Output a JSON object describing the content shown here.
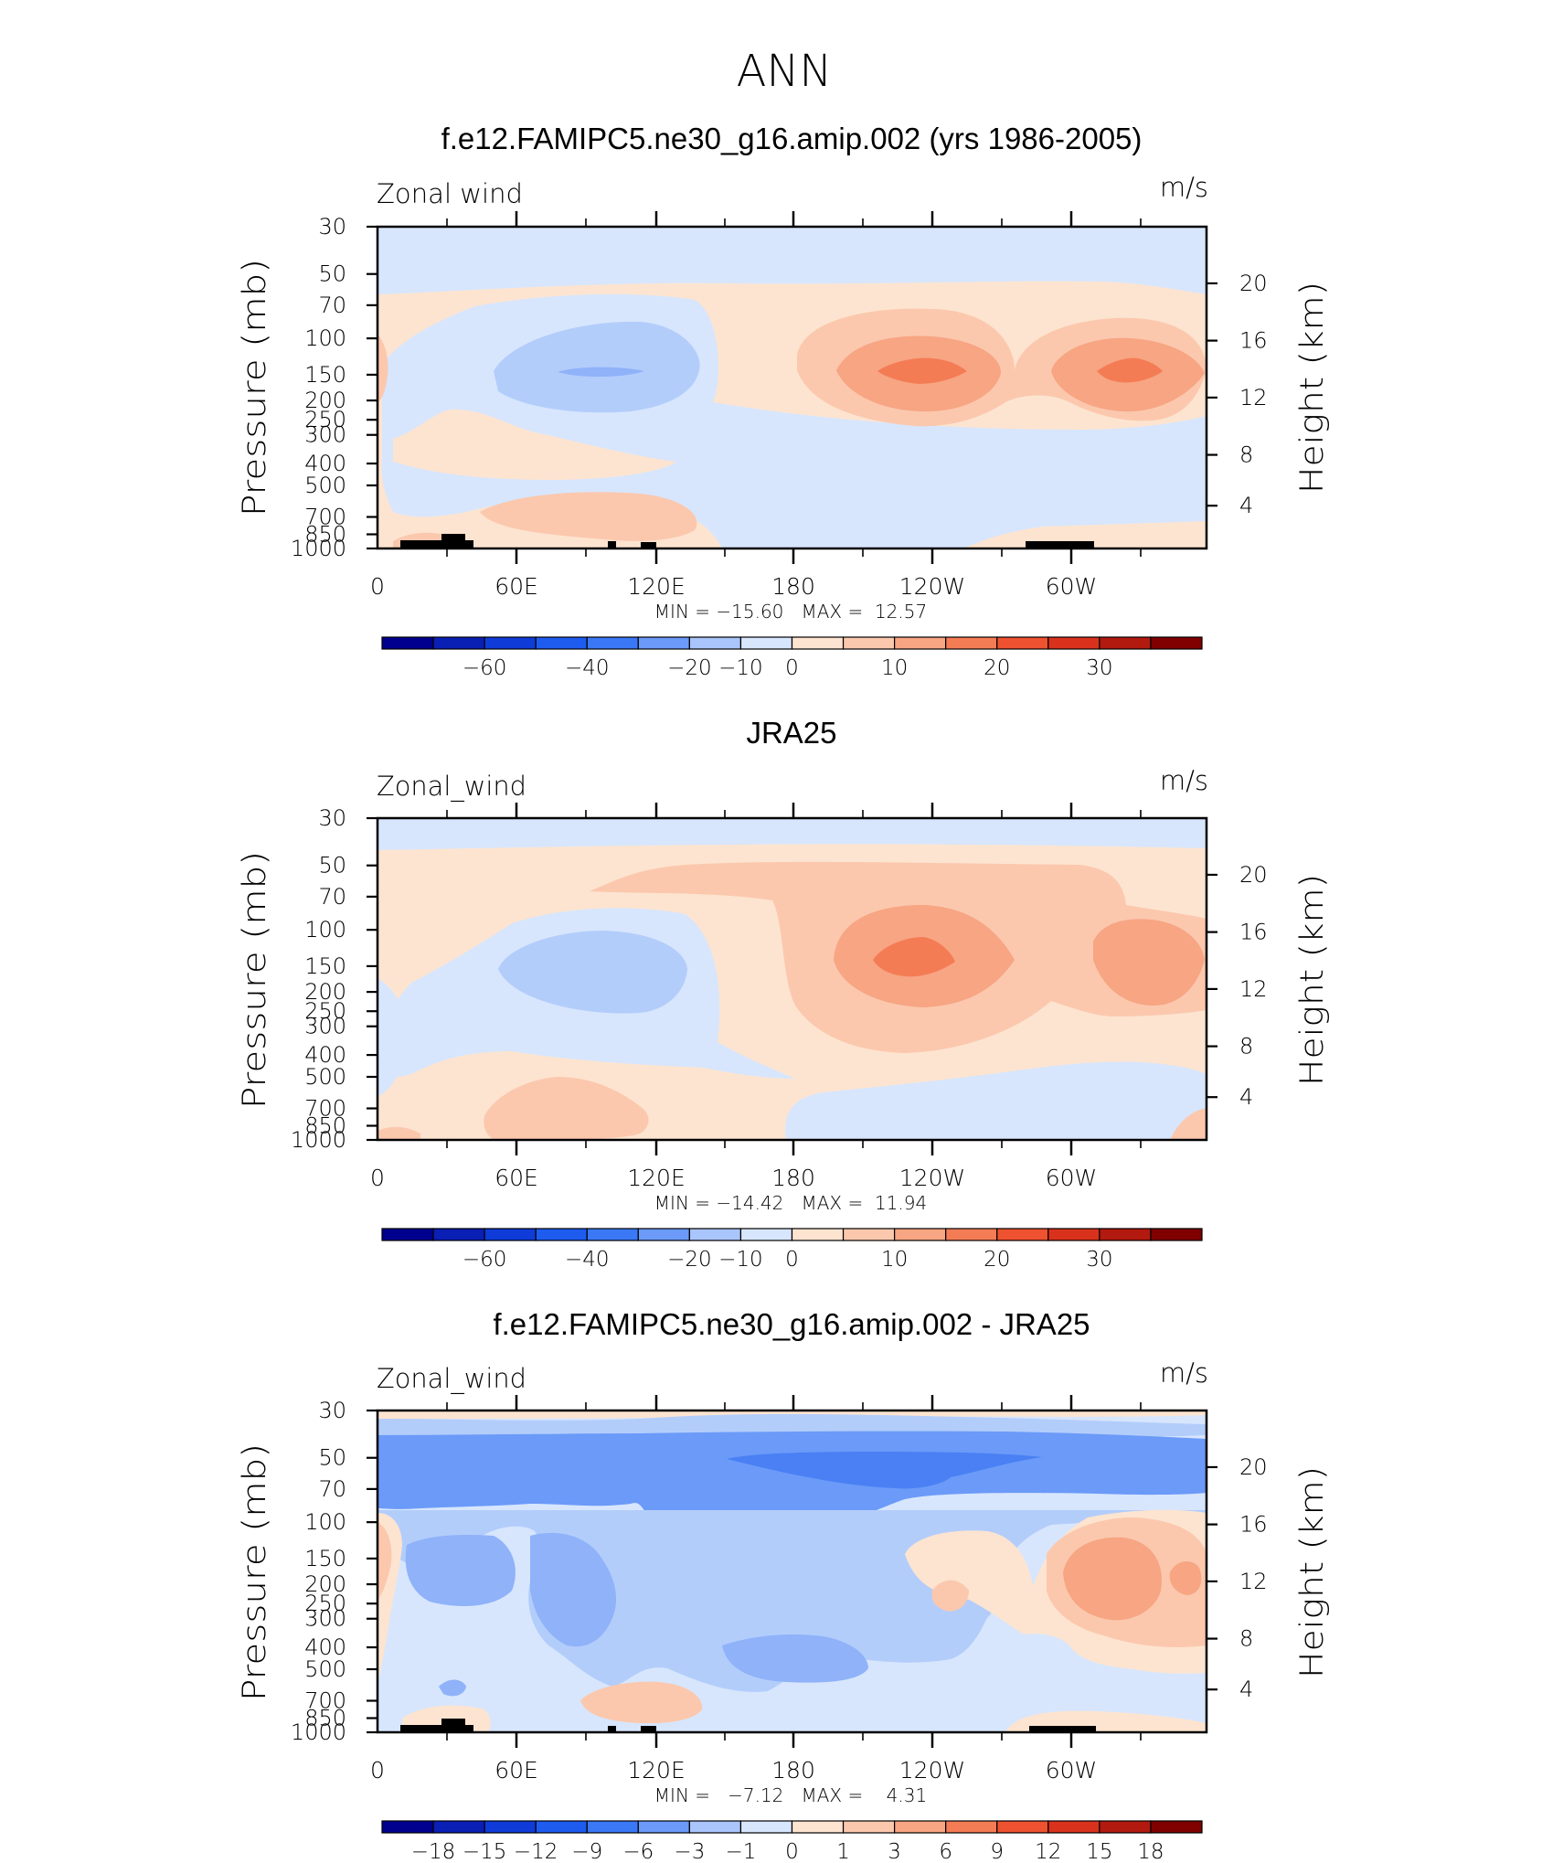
{
  "figure_title": "ANN",
  "chart_data": [
    {
      "type": "heatmap",
      "title": "f.e12.FAMIPC5.ne30_g16.amip.002 (yrs 1986-2005)",
      "variable_label": "Zonal wind",
      "units": "m/s",
      "ylabel": "Pressure (mb)",
      "ylabel2": "Height (km)",
      "x_ticklabels": [
        "0",
        "60E",
        "120E",
        "180",
        "120W",
        "60W"
      ],
      "y_ticklabels": [
        "30",
        "50",
        "70",
        "100",
        "150",
        "200",
        "250",
        "300",
        "400",
        "500",
        "700",
        "850",
        "1000"
      ],
      "y2_ticklabels": [
        "20",
        "16",
        "12",
        "8",
        "4"
      ],
      "min_max_text": "MIN = −15.60   MAX =  12.57",
      "min": -15.6,
      "max": 12.57,
      "colorbar_labels": [
        "−60",
        "−40",
        "−20",
        "−10",
        "0",
        "10",
        "20",
        "30"
      ]
    },
    {
      "type": "heatmap",
      "title": "JRA25",
      "variable_label": "Zonal_wind",
      "units": "m/s",
      "ylabel": "Pressure (mb)",
      "ylabel2": "Height (km)",
      "x_ticklabels": [
        "0",
        "60E",
        "120E",
        "180",
        "120W",
        "60W"
      ],
      "y_ticklabels": [
        "30",
        "50",
        "70",
        "100",
        "150",
        "200",
        "250",
        "300",
        "400",
        "500",
        "700",
        "850",
        "1000"
      ],
      "y2_ticklabels": [
        "20",
        "16",
        "12",
        "8",
        "4"
      ],
      "min_max_text": "MIN = −14.42   MAX =  11.94",
      "min": -14.42,
      "max": 11.94,
      "colorbar_labels": [
        "−60",
        "−40",
        "−20",
        "−10",
        "0",
        "10",
        "20",
        "30"
      ]
    },
    {
      "type": "heatmap",
      "title": "f.e12.FAMIPC5.ne30_g16.amip.002 - JRA25",
      "variable_label": "Zonal_wind",
      "units": "m/s",
      "ylabel": "Pressure (mb)",
      "ylabel2": "Height (km)",
      "x_ticklabels": [
        "0",
        "60E",
        "120E",
        "180",
        "120W",
        "60W"
      ],
      "y_ticklabels": [
        "30",
        "50",
        "70",
        "100",
        "150",
        "200",
        "250",
        "300",
        "400",
        "500",
        "700",
        "850",
        "1000"
      ],
      "y2_ticklabels": [
        "20",
        "16",
        "12",
        "8",
        "4"
      ],
      "min_max_text": "MIN =   −7.12   MAX =    4.31",
      "min": -7.12,
      "max": 4.31,
      "colorbar_labels": [
        "−18",
        "−15",
        "−12",
        "−9",
        "−6",
        "−3",
        "−1",
        "0",
        "1",
        "3",
        "6",
        "9",
        "12",
        "15",
        "18"
      ]
    }
  ],
  "colors": {
    "palette": [
      "#00008f",
      "#0a1fb4",
      "#0f3cd8",
      "#1e5cf0",
      "#3a78f5",
      "#6b9af8",
      "#a9c5fb",
      "#d7e6fd",
      "#fde4d0",
      "#fbc8ae",
      "#f7a583",
      "#f47c55",
      "#ef5230",
      "#d9321c",
      "#b2190f",
      "#800000"
    ],
    "light_blue": "#d7e6fd",
    "blue_1": "#b3cdfb",
    "blue_2": "#8fb2f9",
    "blue_3": "#6b9af8",
    "blue_4": "#4a80f4",
    "peach": "#fde4d0",
    "salmon_1": "#fbc8ae",
    "salmon_2": "#f7a583",
    "salmon_3": "#f47c55"
  }
}
